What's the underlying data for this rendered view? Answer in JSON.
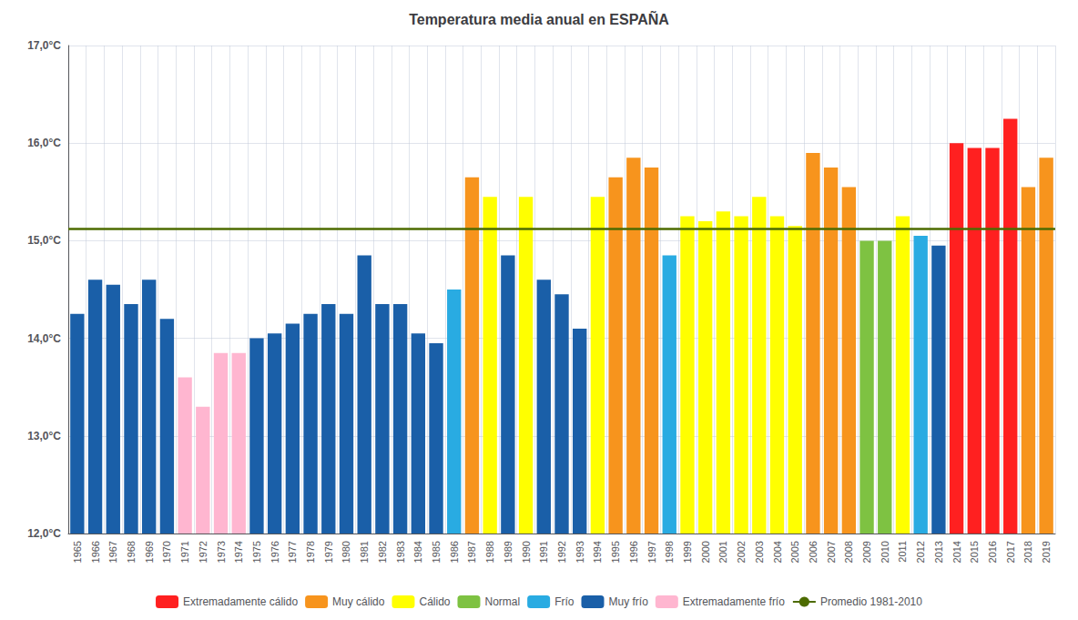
{
  "chart_data": {
    "type": "bar",
    "title": "Temperatura media anual en ESPAÑA",
    "categories": [
      "1965",
      "1966",
      "1967",
      "1968",
      "1969",
      "1970",
      "1971",
      "1972",
      "1973",
      "1974",
      "1975",
      "1976",
      "1977",
      "1978",
      "1979",
      "1980",
      "1981",
      "1982",
      "1983",
      "1984",
      "1985",
      "1986",
      "1987",
      "1988",
      "1989",
      "1990",
      "1991",
      "1992",
      "1993",
      "1994",
      "1995",
      "1996",
      "1997",
      "1998",
      "1999",
      "2000",
      "2001",
      "2002",
      "2003",
      "2004",
      "2005",
      "2006",
      "2007",
      "2008",
      "2009",
      "2010",
      "2011",
      "2012",
      "2013",
      "2014",
      "2015",
      "2016",
      "2017",
      "2018",
      "2019"
    ],
    "series": [
      {
        "name": "Extremadamente cálido",
        "color": "#ff2020",
        "values": [
          null,
          null,
          null,
          null,
          null,
          null,
          null,
          null,
          null,
          null,
          null,
          null,
          null,
          null,
          null,
          null,
          null,
          null,
          null,
          null,
          null,
          null,
          null,
          null,
          null,
          null,
          null,
          null,
          null,
          null,
          null,
          null,
          null,
          null,
          null,
          null,
          null,
          null,
          null,
          null,
          null,
          null,
          null,
          null,
          null,
          null,
          null,
          null,
          null,
          16.0,
          15.95,
          15.95,
          16.25,
          null,
          null
        ]
      },
      {
        "name": "Muy cálido",
        "color": "#f7941d",
        "values": [
          null,
          null,
          null,
          null,
          null,
          null,
          null,
          null,
          null,
          null,
          null,
          null,
          null,
          null,
          null,
          null,
          null,
          null,
          null,
          null,
          null,
          null,
          15.65,
          null,
          null,
          null,
          null,
          null,
          null,
          null,
          15.65,
          15.85,
          15.75,
          null,
          null,
          null,
          null,
          null,
          null,
          null,
          null,
          15.9,
          15.75,
          15.55,
          null,
          null,
          null,
          null,
          null,
          null,
          null,
          null,
          null,
          15.55,
          15.85
        ]
      },
      {
        "name": "Cálido",
        "color": "#ffff00",
        "values": [
          null,
          null,
          null,
          null,
          null,
          null,
          null,
          null,
          null,
          null,
          null,
          null,
          null,
          null,
          null,
          null,
          null,
          null,
          null,
          null,
          null,
          null,
          null,
          15.45,
          null,
          15.45,
          null,
          null,
          null,
          15.45,
          null,
          null,
          null,
          null,
          15.25,
          15.2,
          15.3,
          15.25,
          15.45,
          15.25,
          15.15,
          null,
          null,
          null,
          null,
          null,
          15.25,
          null,
          null,
          null,
          null,
          null,
          null,
          null,
          null
        ]
      },
      {
        "name": "Normal",
        "color": "#7ec242",
        "values": [
          null,
          null,
          null,
          null,
          null,
          null,
          null,
          null,
          null,
          null,
          null,
          null,
          null,
          null,
          null,
          null,
          null,
          null,
          null,
          null,
          null,
          null,
          null,
          null,
          null,
          null,
          null,
          null,
          null,
          null,
          null,
          null,
          null,
          null,
          null,
          null,
          null,
          null,
          null,
          null,
          null,
          null,
          null,
          null,
          15.0,
          15.0,
          null,
          null,
          null,
          null,
          null,
          null,
          null,
          null,
          null
        ]
      },
      {
        "name": "Frío",
        "color": "#29abe2",
        "values": [
          null,
          null,
          null,
          null,
          null,
          null,
          null,
          null,
          null,
          null,
          null,
          null,
          null,
          null,
          null,
          null,
          null,
          null,
          null,
          null,
          null,
          14.5,
          null,
          null,
          null,
          null,
          null,
          null,
          null,
          null,
          null,
          null,
          null,
          14.85,
          null,
          null,
          null,
          null,
          null,
          null,
          null,
          null,
          null,
          null,
          null,
          null,
          null,
          15.05,
          null,
          null,
          null,
          null,
          null,
          null,
          null
        ]
      },
      {
        "name": "Muy frío",
        "color": "#1a5fa8",
        "values": [
          14.25,
          14.6,
          14.55,
          14.35,
          14.6,
          14.2,
          null,
          null,
          null,
          null,
          14.0,
          14.05,
          14.15,
          14.25,
          14.35,
          14.25,
          14.85,
          14.35,
          14.35,
          14.05,
          13.95,
          null,
          null,
          null,
          14.85,
          null,
          14.6,
          14.45,
          14.1,
          null,
          null,
          null,
          null,
          null,
          null,
          null,
          null,
          null,
          null,
          null,
          null,
          null,
          null,
          null,
          null,
          null,
          null,
          null,
          14.95,
          null,
          null,
          null,
          null,
          null,
          null
        ]
      },
      {
        "name": "Extremadamente frío",
        "color": "#ffb6d0",
        "values": [
          null,
          null,
          null,
          null,
          null,
          null,
          13.6,
          13.3,
          13.85,
          13.85,
          null,
          null,
          null,
          null,
          null,
          null,
          null,
          null,
          null,
          null,
          null,
          null,
          null,
          null,
          null,
          null,
          null,
          null,
          null,
          null,
          null,
          null,
          null,
          null,
          null,
          null,
          null,
          null,
          null,
          null,
          null,
          null,
          null,
          null,
          null,
          null,
          null,
          null,
          null,
          null,
          null,
          null,
          null,
          null,
          null
        ]
      },
      {
        "name": "Promedio 1981-2010",
        "type": "hline",
        "color": "#4d6b00",
        "value": 15.12
      }
    ],
    "ylim": [
      12.0,
      17.0
    ],
    "yticks": [
      {
        "value": 12.0,
        "label": "12,0°C"
      },
      {
        "value": 13.0,
        "label": "13,0°C"
      },
      {
        "value": 14.0,
        "label": "14,0°C"
      },
      {
        "value": 15.0,
        "label": "15,0°C"
      },
      {
        "value": 16.0,
        "label": "16,0°C"
      },
      {
        "value": 17.0,
        "label": "17,0°C"
      }
    ],
    "grid": true,
    "legend": "bottom"
  }
}
